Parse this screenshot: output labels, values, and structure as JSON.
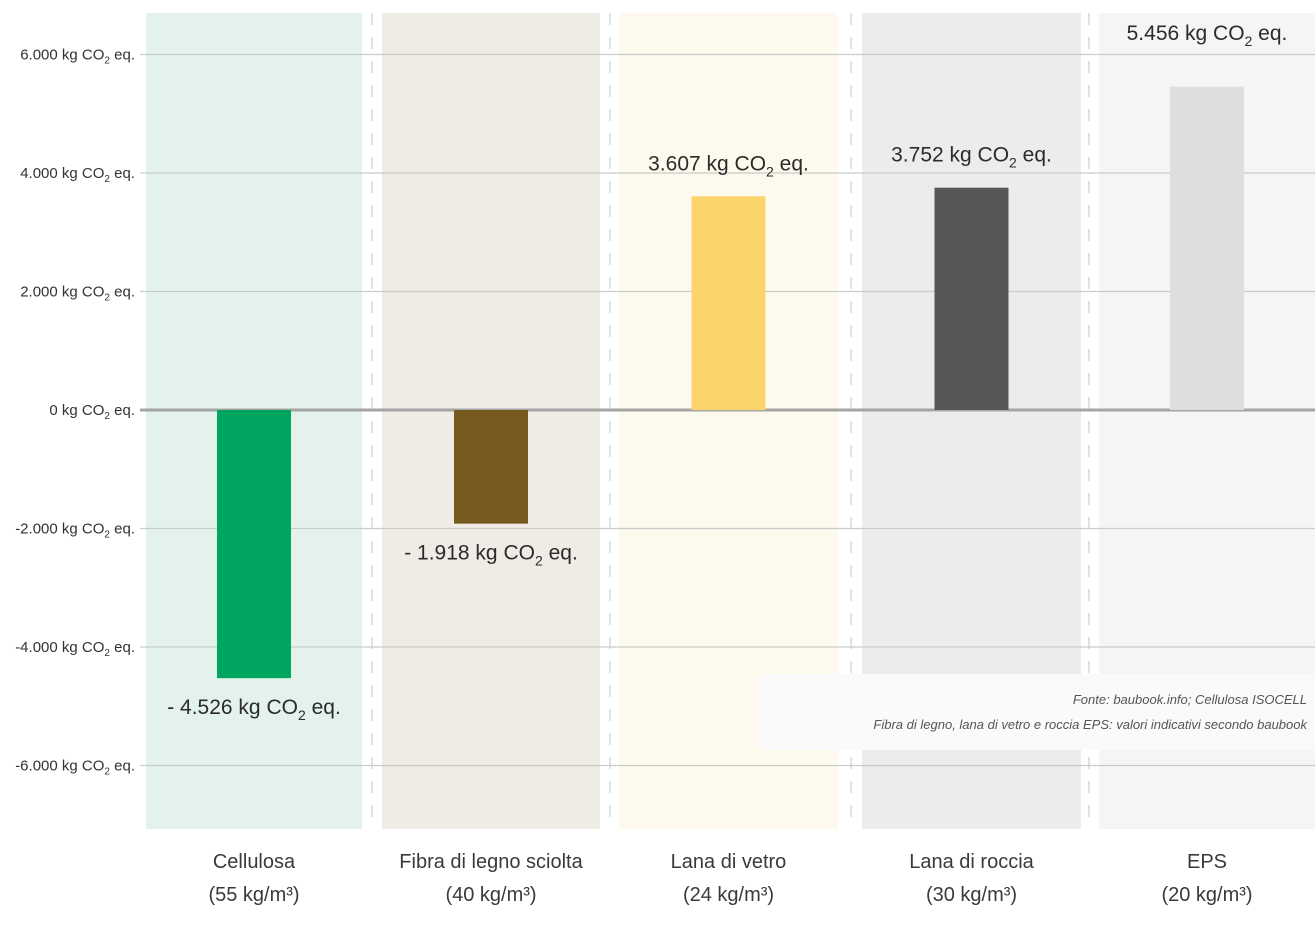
{
  "chart_data": {
    "type": "bar",
    "unit": "kg CO2 eq.",
    "categories": [
      "Cellulosa",
      "Fibra di legno sciolta",
      "Lana di vetro",
      "Lana di roccia",
      "EPS"
    ],
    "densities": [
      "(55 kg/m³)",
      "(40 kg/m³)",
      "(24 kg/m³)",
      "(30 kg/m³)",
      "(20 kg/m³)"
    ],
    "values": [
      -4526,
      -1918,
      3607,
      3752,
      5456
    ],
    "bar_colors": [
      "#00a65f",
      "#775b1e",
      "#fbd56b",
      "#565759",
      "#dededd"
    ],
    "column_colors": [
      "#e3f2eb",
      "#efebe5",
      "#fdf9ec",
      "#ececec",
      "#f5f5f5"
    ],
    "ylim": [
      -7000,
      7000
    ],
    "yticks": [
      6000,
      4000,
      2000,
      0,
      -2000,
      -4000,
      -6000
    ],
    "ytick_labels": [
      "6.000 kg CO",
      "4.000 kg CO",
      "2.000 kg CO",
      "0 kg CO",
      "-2.000 kg CO",
      "-4.000 kg CO",
      "-6.000 kg CO"
    ],
    "data_labels": [
      "- 4.526 kg CO",
      "- 1.918 kg CO",
      "3.607 kg CO",
      "3.752 kg CO",
      "5.456 kg CO"
    ],
    "co2_subscript": "2",
    "label_suffix": "eq.",
    "grid": true,
    "source_lines": [
      "Fonte: baubook.info; Cellulosa ISOCELL",
      "Fibra di legno, lana di vetro e roccia EPS: valori indicativi secondo baubook"
    ]
  }
}
